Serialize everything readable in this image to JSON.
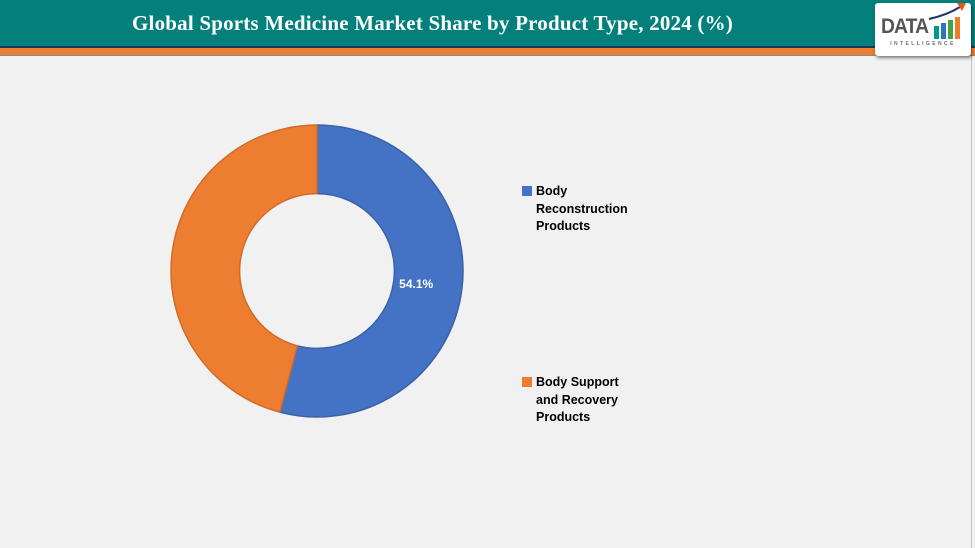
{
  "header": {
    "title": "Global Sports Medicine Market Share by Product Type, 2024 (%)",
    "logo": {
      "brand": "DATA",
      "sub": "INTELLIGENCE"
    }
  },
  "chart_data": {
    "type": "pie",
    "subtype": "donut",
    "title": "Global Sports Medicine Market Share by Product Type, 2024 (%)",
    "categories": [
      "Body Reconstruction Products",
      "Body Support and Recovery Products"
    ],
    "values": [
      54.1,
      45.9
    ],
    "colors": [
      "#4472c4",
      "#ed7d31"
    ],
    "stroke_colors": [
      "#3a62a8",
      "#d06c26"
    ],
    "data_labels": [
      "54.1%",
      ""
    ],
    "start_angle_deg": -90,
    "direction": "clockwise",
    "hole_ratio": 0.53,
    "legend_position": "right"
  },
  "legend": {
    "items": [
      {
        "label": "Body Reconstruction Products",
        "color": "#4472c4"
      },
      {
        "label": "Body Support and Recovery Products",
        "color": "#ed7d31"
      }
    ]
  }
}
